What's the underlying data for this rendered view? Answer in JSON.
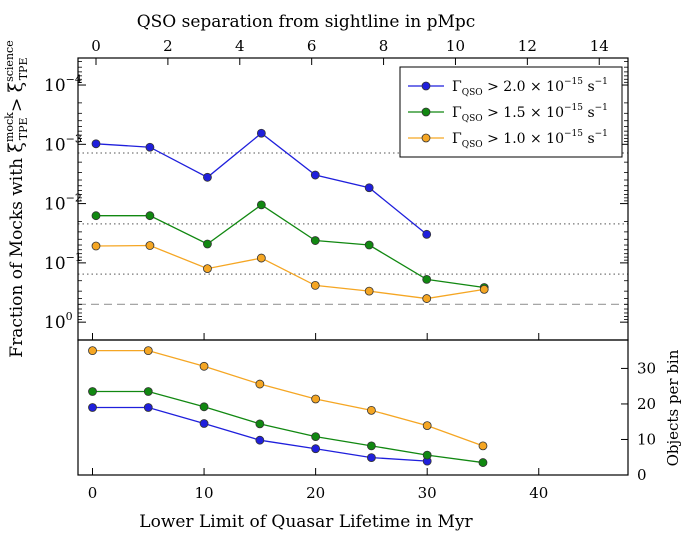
{
  "chart_data": [
    {
      "type": "line",
      "panel": "top",
      "x_axis_title": "Lower Limit of Quasar Lifetime in Myr",
      "top_axis_title": "QSO separation from sightline in pMpc",
      "ylabel": "Fraction of Mocks with ξ_TPE^mock > ξ_TPE^science",
      "ylabel_parts": {
        "prefix": "Fraction of Mocks with ",
        "xi": "ξ",
        "sub": "TPE",
        "sup1": "mock",
        "gt": " > ",
        "sup2": "science"
      },
      "x_range": [
        -1.3,
        48
      ],
      "top_axis_range": [
        0,
        14.8
      ],
      "top_ticks": [
        0,
        2,
        4,
        6,
        8,
        10,
        12,
        14
      ],
      "y_scale": "log",
      "y_axis_inverted": true,
      "y_ticks": [
        {
          "value": 0.0001,
          "base": "10",
          "exp": "−4"
        },
        {
          "value": 0.001,
          "base": "10",
          "exp": "−3"
        },
        {
          "value": 0.01,
          "base": "10",
          "exp": "−2"
        },
        {
          "value": 0.1,
          "base": "10",
          "exp": "−1"
        },
        {
          "value": 1,
          "base": "10",
          "exp": "0"
        }
      ],
      "y_range": [
        3.5e-05,
        2.0
      ],
      "legend_position": "top-right",
      "reference_lines": [
        {
          "style": "dotted",
          "y": 0.0014
        },
        {
          "style": "dotted",
          "y": 0.022
        },
        {
          "style": "dotted",
          "y": 0.155
        },
        {
          "style": "dashed",
          "y": 0.5
        }
      ],
      "series": [
        {
          "name": "Γ_QSO > 2.0 × 10^−15 s^−1",
          "legend": {
            "gamma": "Γ",
            "sub": "QSO",
            "main": " > 2.0 × 10",
            "exp": "−15",
            "unit": " s",
            "unit_exp": "−1"
          },
          "color": "#1f1fdc",
          "x": [
            0,
            5,
            10,
            15,
            20,
            25,
            30
          ],
          "sep": [
            0,
            1.5,
            3.1,
            4.6,
            6.1,
            7.6,
            9.2
          ],
          "y": [
            0.00098,
            0.00112,
            0.0036,
            0.00065,
            0.0033,
            0.0054,
            0.033
          ]
        },
        {
          "name": "Γ_QSO > 1.5 × 10^−15 s^−1",
          "legend": {
            "gamma": "Γ",
            "sub": "QSO",
            "main": " > 1.5 × 10",
            "exp": "−15",
            "unit": " s",
            "unit_exp": "−1"
          },
          "color": "#118811",
          "x": [
            0,
            5,
            10,
            15,
            20,
            25,
            30,
            35
          ],
          "sep": [
            0,
            1.5,
            3.1,
            4.6,
            6.1,
            7.6,
            9.2,
            10.8
          ],
          "y": [
            0.016,
            0.016,
            0.048,
            0.0105,
            0.042,
            0.05,
            0.19,
            0.26
          ]
        },
        {
          "name": "Γ_QSO > 1.0 × 10^−15 s^−1",
          "legend": {
            "gamma": "Γ",
            "sub": "QSO",
            "main": " > 1.0 × 10",
            "exp": "−15",
            "unit": " s",
            "unit_exp": "−1"
          },
          "color": "#f5a623",
          "x": [
            0,
            5,
            10,
            15,
            20,
            25,
            30,
            35
          ],
          "sep": [
            0,
            1.5,
            3.1,
            4.6,
            6.1,
            7.6,
            9.2,
            10.8
          ],
          "y": [
            0.052,
            0.051,
            0.125,
            0.083,
            0.24,
            0.3,
            0.4,
            0.28
          ]
        }
      ]
    },
    {
      "type": "line",
      "panel": "bottom",
      "xlabel": "Lower Limit of Quasar Lifetime in Myr",
      "ylabel": "Objects per bin",
      "x_ticks": [
        0,
        10,
        20,
        30,
        40
      ],
      "x_range": [
        -1.3,
        48
      ],
      "y_ticks": [
        0,
        10,
        20,
        30
      ],
      "y_range": [
        0,
        38
      ],
      "y_axis_side": "right",
      "series": [
        {
          "name": "Γ_QSO > 2.0 × 10^−15 s^−1",
          "color": "#1f1fdc",
          "x": [
            0,
            5,
            10,
            15,
            20,
            25,
            30
          ],
          "y": [
            19,
            19,
            14.5,
            9.8,
            7.4,
            4.9,
            3.9
          ]
        },
        {
          "name": "Γ_QSO > 1.5 × 10^−15 s^−1",
          "color": "#118811",
          "x": [
            0,
            5,
            10,
            15,
            20,
            25,
            30,
            35
          ],
          "y": [
            23.5,
            23.5,
            19.2,
            14.4,
            10.8,
            8.2,
            5.6,
            3.5
          ]
        },
        {
          "name": "Γ_QSO > 1.0 × 10^−15 s^−1",
          "color": "#f5a623",
          "x": [
            0,
            5,
            10,
            15,
            20,
            25,
            30,
            35
          ],
          "y": [
            35,
            35,
            30.6,
            25.6,
            21.4,
            18.2,
            13.9,
            8.2
          ]
        }
      ]
    }
  ]
}
